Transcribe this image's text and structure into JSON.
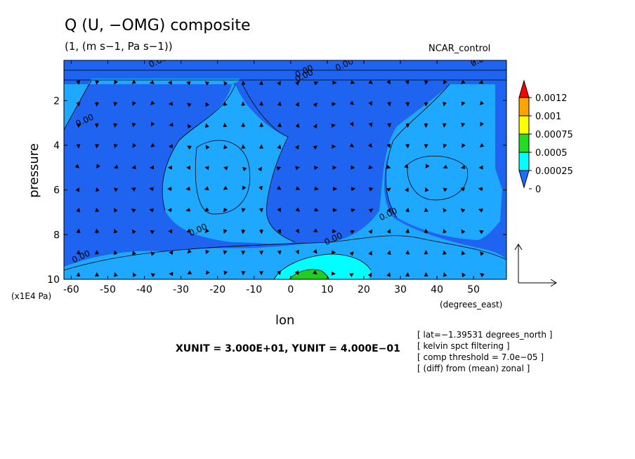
{
  "chart_data": {
    "type": "contour",
    "title": "Q (U, −OMG) composite",
    "subtitle": "(1, (m s−1, Pa s−1))",
    "run_label": "NCAR_control",
    "xlabel": "lon",
    "xunit_note": "(degrees_east)",
    "ylabel": "pressure",
    "yunit_note": "(x1E4 Pa)",
    "x_ticks": [
      -60,
      -50,
      -40,
      -30,
      -20,
      -10,
      0,
      10,
      20,
      30,
      40,
      50
    ],
    "y_ticks": [
      2,
      4,
      6,
      8,
      10
    ],
    "xlim": [
      -62,
      59
    ],
    "ylim_top": 0.2,
    "ylim_bottom": 10,
    "y_inverted": true,
    "contour_label": "0.00",
    "contour_label_positions": [
      {
        "x": -56,
        "y": 3.0
      },
      {
        "x": -57,
        "y": 9.1
      },
      {
        "x": -25,
        "y": 7.9
      },
      {
        "x": 12,
        "y": 8.3
      },
      {
        "x": 27,
        "y": 7.2
      },
      {
        "x": -36,
        "y": 0.35
      },
      {
        "x": 4,
        "y": 0.8
      },
      {
        "x": 4,
        "y": 1.0
      },
      {
        "x": 15,
        "y": 0.5
      },
      {
        "x": 52,
        "y": 0.3
      }
    ],
    "legend": {
      "levels": [
        "0.0012",
        "0.001",
        "0.00075",
        "0.0005",
        "0.00025",
        "0"
      ],
      "colors": [
        "#ff0000",
        "#ffa500",
        "#ffff00",
        "#22dd22",
        "#00ffff",
        "#1e6fff"
      ],
      "extend": "both"
    },
    "fill_colors": {
      "below_zero": "#1e64f0",
      "zero_to_00025": "#1ea8ff",
      "00025_to_0005": "#00ffff",
      "0005_to_00075": "#22cc22"
    },
    "vector_reference": "XUNIT = 3.000E+01, YUNIT = 4.000E−01",
    "info_lines": [
      "[ lat=−1.39531 degrees_north ]",
      "[ kelvin spct filtering ]",
      "[ comp threshold = 7.0e−05 ]",
      "[ (diff) from (mean) zonal ]"
    ]
  }
}
